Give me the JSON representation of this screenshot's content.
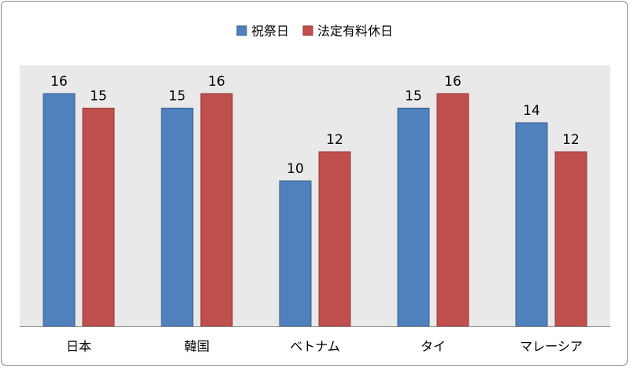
{
  "chart_data": {
    "type": "bar",
    "categories": [
      "日本",
      "韓国",
      "ベトナム",
      "タイ",
      "マレーシア"
    ],
    "series": [
      {
        "name": "祝祭日",
        "values": [
          16,
          15,
          10,
          15,
          14
        ],
        "color": "#4f81bd",
        "stroke": "#3a6190"
      },
      {
        "name": "法定有料休日",
        "values": [
          15,
          16,
          12,
          16,
          12
        ],
        "color": "#c0504d",
        "stroke": "#943c3a"
      }
    ],
    "ylim": [
      0,
      17
    ],
    "grid": false,
    "legend_position": "top",
    "plot_background": "#e9e9e9",
    "data_labels": true
  }
}
